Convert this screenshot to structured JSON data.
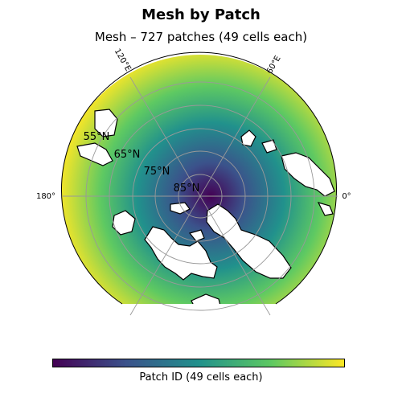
{
  "figure": {
    "title": "Mesh by Patch",
    "subtitle": "Mesh – 727 patches (49 cells each)"
  },
  "map": {
    "projection": "north-polar-stereographic",
    "meridian_labels": [
      {
        "text": "120°E",
        "lon": 120
      },
      {
        "text": "60°E",
        "lon": 60
      },
      {
        "text": "180°",
        "lon": 180
      },
      {
        "text": "0°",
        "lon": 0
      }
    ],
    "parallel_labels": [
      {
        "text": "55°N",
        "lat": 55
      },
      {
        "text": "65°N",
        "lat": 65
      },
      {
        "text": "75°N",
        "lat": 75
      },
      {
        "text": "85°N",
        "lat": 85
      }
    ],
    "gridline_color": "#999999",
    "coastline_color": "#000000",
    "land_color": "#ffffff"
  },
  "colorbar": {
    "label": "Patch ID (49 cells each)",
    "colormap": "viridis",
    "colors": [
      "#440154",
      "#3b528b",
      "#21918c",
      "#5ec962",
      "#fde725"
    ]
  }
}
